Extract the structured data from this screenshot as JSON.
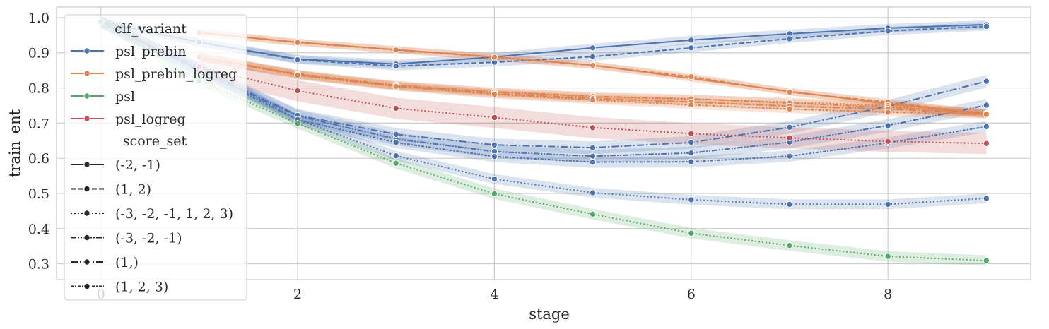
{
  "chart_data": {
    "type": "line",
    "xlabel": "stage",
    "ylabel": "train_ent",
    "xlim": [
      -0.45,
      9.45
    ],
    "ylim": [
      0.255,
      1.03
    ],
    "xticks": [
      "0",
      "2",
      "4",
      "6",
      "8"
    ],
    "yticks": [
      "0.3",
      "0.4",
      "0.5",
      "0.6",
      "0.7",
      "0.8",
      "0.9",
      "1.0"
    ],
    "grid": true,
    "legend_position": "top-left",
    "colors": {
      "psl_prebin": "#4c72b0",
      "psl_prebin_logreg": "#dd8452",
      "psl": "#55a868",
      "psl_logreg": "#c44e52"
    },
    "legend": {
      "hue_title": "clf_variant",
      "hue_entries": [
        "psl_prebin",
        "psl_prebin_logreg",
        "psl",
        "psl_logreg"
      ],
      "style_title": "score_set",
      "style_entries": [
        "(-2, -1)",
        "(1, 2)",
        "(-3, -2, -1, 1, 2, 3)",
        "(-3, -2, -1)",
        "(1,)",
        "(1, 2, 3)"
      ]
    },
    "series": [
      {
        "clf_variant": "psl_prebin",
        "score_set": "(-2, -1)",
        "x": [
          0,
          1,
          2,
          3,
          4,
          5,
          6,
          7,
          8,
          9
        ],
        "y": [
          0.988,
          0.93,
          0.882,
          0.868,
          0.888,
          0.914,
          0.936,
          0.954,
          0.97,
          0.98
        ],
        "band": 0.012
      },
      {
        "clf_variant": "psl_prebin",
        "score_set": "(1, 2)",
        "x": [
          0,
          1,
          2,
          3,
          4,
          5,
          6,
          7,
          8,
          9
        ],
        "y": [
          0.988,
          0.93,
          0.88,
          0.862,
          0.873,
          0.889,
          0.914,
          0.94,
          0.962,
          0.975
        ],
        "band": 0.012
      },
      {
        "clf_variant": "psl_prebin",
        "score_set": "(-3, -2, -1, 1, 2, 3)",
        "x": [
          0,
          1,
          2,
          3,
          4,
          5,
          6,
          7,
          8,
          9
        ],
        "y": [
          0.988,
          0.86,
          0.71,
          0.607,
          0.541,
          0.502,
          0.482,
          0.469,
          0.469,
          0.486
        ],
        "band": 0.014
      },
      {
        "clf_variant": "psl_prebin",
        "score_set": "(-3, -2, -1)",
        "x": [
          0,
          1,
          2,
          3,
          4,
          5,
          6,
          7,
          8,
          9
        ],
        "y": [
          0.988,
          0.85,
          0.72,
          0.655,
          0.619,
          0.606,
          0.615,
          0.646,
          0.693,
          0.751
        ],
        "band": 0.018
      },
      {
        "clf_variant": "psl_prebin",
        "score_set": "(1,)",
        "x": [
          0,
          1,
          2,
          3,
          4,
          5,
          6,
          7,
          8,
          9
        ],
        "y": [
          0.988,
          0.855,
          0.722,
          0.668,
          0.638,
          0.63,
          0.645,
          0.688,
          0.748,
          0.819
        ],
        "band": 0.018
      },
      {
        "clf_variant": "psl_prebin",
        "score_set": "(1, 2, 3)",
        "x": [
          0,
          1,
          2,
          3,
          4,
          5,
          6,
          7,
          8,
          9
        ],
        "y": [
          0.988,
          0.85,
          0.71,
          0.645,
          0.605,
          0.589,
          0.59,
          0.606,
          0.644,
          0.69
        ],
        "band": 0.016
      },
      {
        "clf_variant": "psl_prebin_logreg",
        "score_set": "(-2, -1)",
        "x": [
          1,
          2,
          3,
          4,
          5,
          6,
          7,
          8,
          9
        ],
        "y": [
          0.957,
          0.93,
          0.909,
          0.888,
          0.865,
          0.827,
          0.79,
          0.755,
          0.727
        ],
        "band": 0.01
      },
      {
        "clf_variant": "psl_prebin_logreg",
        "score_set": "(1, 2)",
        "x": [
          1,
          2,
          3,
          4,
          5,
          6,
          7,
          8,
          9
        ],
        "y": [
          0.957,
          0.929,
          0.908,
          0.887,
          0.864,
          0.832,
          0.788,
          0.76,
          0.725
        ],
        "band": 0.01
      },
      {
        "clf_variant": "psl_prebin_logreg",
        "score_set": "(-3, -2, -1, 1, 2, 3)",
        "x": [
          1,
          2,
          3,
          4,
          5,
          6,
          7,
          8,
          9
        ],
        "y": [
          0.888,
          0.838,
          0.807,
          0.788,
          0.774,
          0.768,
          0.76,
          0.75,
          0.728
        ],
        "band": 0.012
      },
      {
        "clf_variant": "psl_prebin_logreg",
        "score_set": "(-3, -2, -1)",
        "x": [
          1,
          2,
          3,
          4,
          5,
          6,
          7,
          8,
          9
        ],
        "y": [
          0.888,
          0.84,
          0.808,
          0.789,
          0.776,
          0.769,
          0.757,
          0.745,
          0.728
        ],
        "band": 0.012
      },
      {
        "clf_variant": "psl_prebin_logreg",
        "score_set": "(1,)",
        "x": [
          1,
          2,
          3,
          4,
          5,
          6,
          7,
          8,
          9
        ],
        "y": [
          0.888,
          0.838,
          0.805,
          0.784,
          0.77,
          0.76,
          0.748,
          0.74,
          0.726
        ],
        "band": 0.012
      },
      {
        "clf_variant": "psl_prebin_logreg",
        "score_set": "(1, 2, 3)",
        "x": [
          1,
          2,
          3,
          4,
          5,
          6,
          7,
          8,
          9
        ],
        "y": [
          0.888,
          0.836,
          0.804,
          0.782,
          0.766,
          0.752,
          0.74,
          0.731,
          0.725
        ],
        "band": 0.012
      },
      {
        "clf_variant": "psl",
        "score_set": "(-3, -2, -1, 1, 2, 3)",
        "x": [
          0,
          1,
          2,
          3,
          4,
          5,
          6,
          7,
          8,
          9
        ],
        "y": [
          0.988,
          0.82,
          0.699,
          0.586,
          0.499,
          0.441,
          0.387,
          0.352,
          0.321,
          0.309
        ],
        "band": 0.015
      },
      {
        "clf_variant": "psl_logreg",
        "score_set": "(-3, -2, -1, 1, 2, 3)",
        "x": [
          1,
          2,
          3,
          4,
          5,
          6,
          7,
          8,
          9
        ],
        "y": [
          0.86,
          0.792,
          0.742,
          0.716,
          0.687,
          0.67,
          0.658,
          0.648,
          0.642
        ],
        "band": 0.03
      }
    ]
  }
}
